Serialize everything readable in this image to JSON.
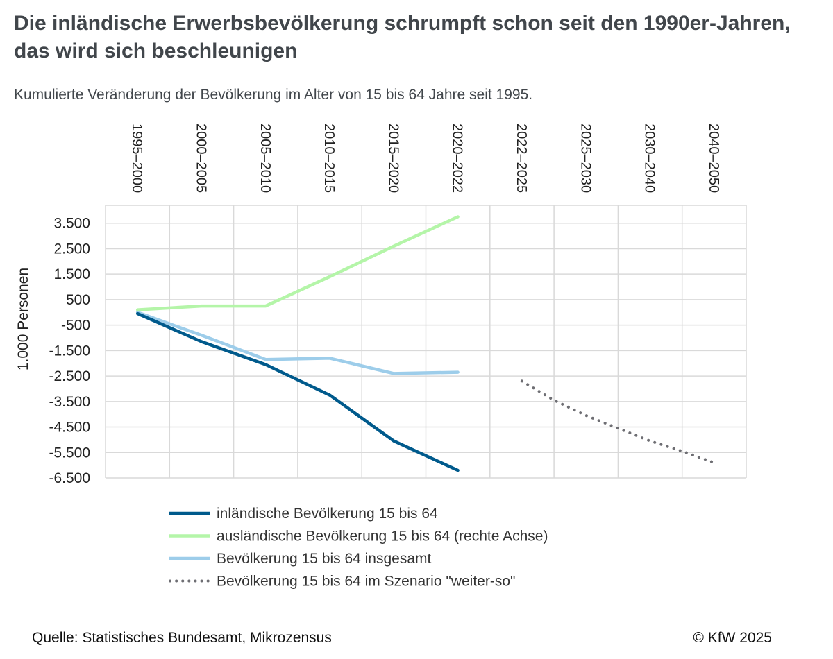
{
  "title": "Die inländische Erwerbsbevölkerung schrumpft schon seit den 1990er-Jahren, das wird sich beschleunigen",
  "subtitle": "Kumulierte Veränderung der Bevölkerung im Alter von 15 bis 64 Jahre seit 1995.",
  "source": "Quelle: Statistisches Bundesamt, Mikrozensus",
  "copyright": "© KfW 2025",
  "chart_data": {
    "type": "line",
    "categories": [
      "1995–2000",
      "2000–2005",
      "2005–2010",
      "2010–2015",
      "2015–2020",
      "2020–2022",
      "2022–2025",
      "2025–2030",
      "2030–2040",
      "2040–2050"
    ],
    "ylabel": "1.000 Personen",
    "ylim": [
      -6500,
      4200
    ],
    "yticks": [
      3500,
      2500,
      1500,
      500,
      -500,
      -1500,
      -2500,
      -3500,
      -4500,
      -5500,
      -6500
    ],
    "ytick_labels": [
      "3.500",
      "2.500",
      "1.500",
      "500",
      "-500",
      "-1.500",
      "-2.500",
      "-3.500",
      "-4.500",
      "-5.500",
      "-6.500"
    ],
    "grid": true,
    "legend_position": "bottom",
    "series": [
      {
        "name": "inländische Bevölkerung 15 bis 64",
        "color": "#005a8c",
        "style": "solid",
        "points": [
          [
            0,
            -50
          ],
          [
            1,
            -1150
          ],
          [
            2,
            -2050
          ],
          [
            3,
            -3250
          ],
          [
            4,
            -5050
          ],
          [
            5,
            -6200
          ]
        ]
      },
      {
        "name": "ausländische Bevölkerung 15 bis 64 (rechte Achse)",
        "color": "#b4f5a8",
        "style": "solid",
        "points": [
          [
            0,
            100
          ],
          [
            1,
            250
          ],
          [
            2,
            250
          ],
          [
            3,
            1400
          ],
          [
            4,
            2600
          ],
          [
            5,
            3750
          ]
        ]
      },
      {
        "name": "Bevölkerung 15 bis 64 insgesamt",
        "color": "#9dcdea",
        "style": "solid",
        "points": [
          [
            0,
            0
          ],
          [
            1,
            -900
          ],
          [
            2,
            -1850
          ],
          [
            3,
            -1800
          ],
          [
            4,
            -2400
          ],
          [
            5,
            -2350
          ]
        ]
      },
      {
        "name": "Bevölkerung 15 bis 64 im Szenario \"weiter-so\"",
        "color": "#6e6e73",
        "style": "dotted",
        "points": [
          [
            6,
            -2700
          ],
          [
            6.5,
            -3450
          ],
          [
            7,
            -4050
          ],
          [
            7.5,
            -4550
          ],
          [
            8,
            -5050
          ],
          [
            8.5,
            -5450
          ],
          [
            9,
            -5900
          ]
        ]
      }
    ]
  }
}
